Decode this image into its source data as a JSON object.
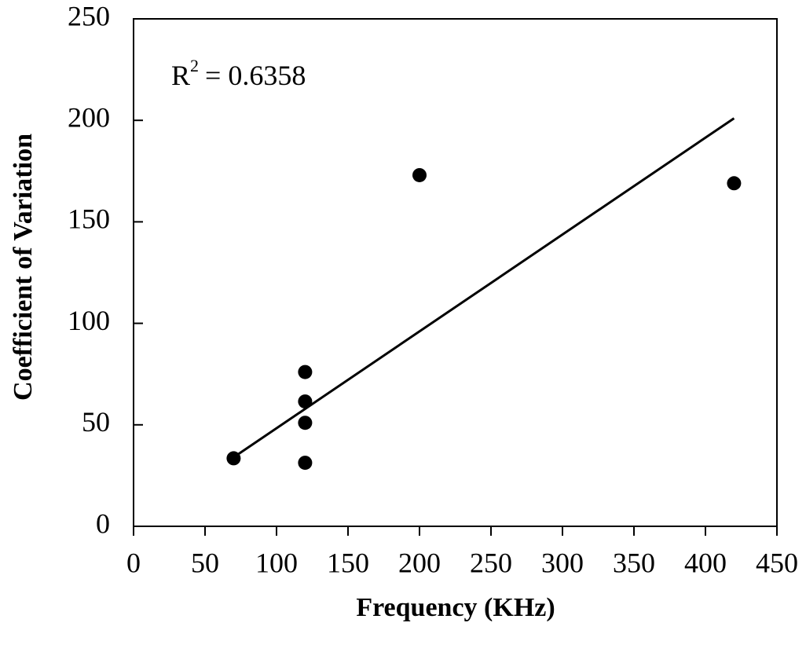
{
  "chart_data": {
    "type": "scatter",
    "x_label": "Frequency (KHz)",
    "y_label": "Coefficient of Variation",
    "annotation": {
      "base": "R",
      "sup": "2",
      "text": "= 0.6358"
    },
    "series": [
      {
        "color": "#000000",
        "x": [
          70,
          120,
          120,
          120,
          120,
          200,
          420
        ],
        "values": [
          33.5,
          76,
          61.5,
          51,
          31.3,
          173,
          169
        ]
      }
    ],
    "trendline": {
      "color": "#000000",
      "x": [
        70,
        420
      ],
      "values": [
        34,
        201
      ]
    },
    "xlim": [
      0,
      450
    ],
    "xticks": [
      0,
      50,
      100,
      150,
      200,
      250,
      300,
      350,
      400,
      450
    ],
    "ylim": [
      0,
      250
    ],
    "yticks": [
      0,
      50,
      100,
      150,
      200,
      250
    ]
  }
}
